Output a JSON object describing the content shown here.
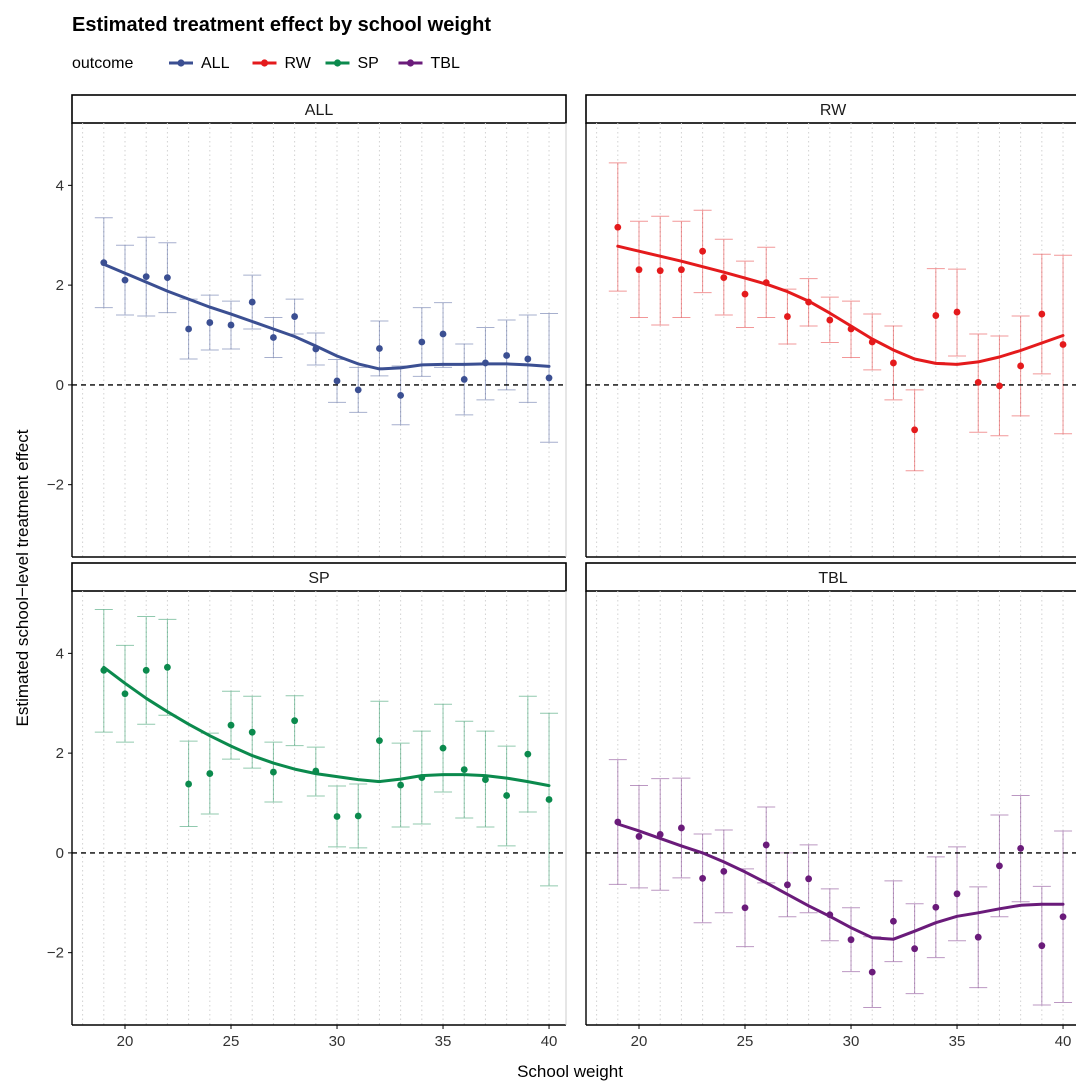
{
  "chart_data": {
    "type": "scatter",
    "title": "Estimated treatment effect by school weight",
    "xlabel": "School weight",
    "ylabel": "Estimated school−level treatment effect",
    "legend": {
      "title": "outcome",
      "placement": "top-left"
    },
    "xlim": [
      17.5,
      40.8
    ],
    "ylim": [
      -3.45,
      5.25
    ],
    "xticks": [
      20,
      25,
      30,
      35,
      40
    ],
    "xtick_labels": [
      "20",
      "25",
      "30",
      "35",
      "40"
    ],
    "yticks": [
      -2,
      0,
      2,
      4
    ],
    "ytick_labels": [
      "−2",
      "0",
      "2",
      "4"
    ],
    "reference_line": 0,
    "x": [
      19,
      20,
      21,
      22,
      23,
      24,
      25,
      26,
      27,
      28,
      29,
      30,
      31,
      32,
      33,
      34,
      35,
      36,
      37,
      38,
      39,
      40
    ],
    "panels": [
      {
        "name": "ALL",
        "color": "#3B4F92",
        "points": [
          2.45,
          2.1,
          2.17,
          2.15,
          1.12,
          1.25,
          1.2,
          1.66,
          0.95,
          1.37,
          0.72,
          0.08,
          -0.1,
          0.73,
          -0.21,
          0.86,
          1.02,
          0.11,
          0.44,
          0.59,
          0.52,
          0.14
        ],
        "lower": [
          1.55,
          1.4,
          1.38,
          1.45,
          0.52,
          0.7,
          0.72,
          1.12,
          0.55,
          1.02,
          0.4,
          -0.35,
          -0.55,
          0.18,
          -0.8,
          0.17,
          0.35,
          -0.6,
          -0.3,
          -0.1,
          -0.35,
          -1.15
        ],
        "upper": [
          3.35,
          2.8,
          2.96,
          2.85,
          1.72,
          1.8,
          1.68,
          2.2,
          1.35,
          1.72,
          1.04,
          0.51,
          0.35,
          1.28,
          0.38,
          1.55,
          1.65,
          0.82,
          1.15,
          1.3,
          1.4,
          1.43
        ],
        "smooth": [
          2.42,
          2.24,
          2.06,
          1.88,
          1.72,
          1.56,
          1.42,
          1.27,
          1.12,
          0.97,
          0.78,
          0.58,
          0.42,
          0.32,
          0.34,
          0.4,
          0.41,
          0.41,
          0.42,
          0.42,
          0.4,
          0.37
        ]
      },
      {
        "name": "RW",
        "color": "#E41A1C",
        "points": [
          3.16,
          2.31,
          2.29,
          2.31,
          2.68,
          2.15,
          1.82,
          2.05,
          1.37,
          1.66,
          1.3,
          1.12,
          0.86,
          0.44,
          -0.9,
          1.39,
          1.46,
          0.05,
          -0.02,
          0.38,
          1.42,
          0.81
        ],
        "lower": [
          1.88,
          1.35,
          1.2,
          1.35,
          1.85,
          1.4,
          1.15,
          1.35,
          0.82,
          1.18,
          0.85,
          0.55,
          0.3,
          -0.3,
          -1.72,
          0.45,
          0.58,
          -0.95,
          -1.02,
          -0.62,
          0.22,
          -0.98
        ],
        "upper": [
          4.45,
          3.28,
          3.38,
          3.28,
          3.5,
          2.92,
          2.48,
          2.76,
          1.92,
          2.13,
          1.76,
          1.68,
          1.42,
          1.18,
          -0.1,
          2.33,
          2.32,
          1.02,
          0.98,
          1.38,
          2.62,
          2.6
        ],
        "smooth": [
          2.78,
          2.68,
          2.58,
          2.48,
          2.37,
          2.26,
          2.14,
          2.02,
          1.87,
          1.68,
          1.44,
          1.18,
          0.92,
          0.7,
          0.52,
          0.43,
          0.41,
          0.46,
          0.56,
          0.69,
          0.84,
          0.99
        ]
      },
      {
        "name": "SP",
        "color": "#0B8A4D",
        "points": [
          3.66,
          3.19,
          3.66,
          3.72,
          1.38,
          1.59,
          2.56,
          2.42,
          1.62,
          2.65,
          1.64,
          0.73,
          0.74,
          2.25,
          1.36,
          1.51,
          2.1,
          1.67,
          1.47,
          1.15,
          1.98,
          1.07
        ],
        "lower": [
          2.42,
          2.22,
          2.58,
          2.76,
          0.53,
          0.78,
          1.88,
          1.7,
          1.02,
          2.15,
          1.14,
          0.12,
          0.1,
          1.45,
          0.52,
          0.58,
          1.22,
          0.7,
          0.52,
          0.14,
          0.82,
          -0.66
        ],
        "upper": [
          4.88,
          4.16,
          4.74,
          4.68,
          2.24,
          2.4,
          3.24,
          3.14,
          2.22,
          3.15,
          2.12,
          1.34,
          1.38,
          3.04,
          2.2,
          2.44,
          2.98,
          2.64,
          2.44,
          2.14,
          3.14,
          2.8
        ],
        "smooth": [
          3.72,
          3.4,
          3.1,
          2.83,
          2.58,
          2.35,
          2.14,
          1.95,
          1.8,
          1.68,
          1.59,
          1.53,
          1.47,
          1.43,
          1.48,
          1.55,
          1.57,
          1.57,
          1.55,
          1.5,
          1.43,
          1.35
        ]
      },
      {
        "name": "TBL",
        "color": "#6A1B7A",
        "points": [
          0.62,
          0.33,
          0.37,
          0.5,
          -0.51,
          -0.37,
          -1.1,
          0.16,
          -0.64,
          -0.52,
          -1.24,
          -1.74,
          -2.39,
          -1.37,
          -1.92,
          -1.09,
          -0.82,
          -1.69,
          -0.26,
          0.09,
          -1.86,
          -1.28
        ],
        "lower": [
          -0.63,
          -0.7,
          -0.75,
          -0.5,
          -1.4,
          -1.2,
          -1.88,
          -0.6,
          -1.28,
          -1.2,
          -1.76,
          -2.38,
          -3.1,
          -2.18,
          -2.82,
          -2.1,
          -1.76,
          -2.7,
          -1.28,
          -0.98,
          -3.05,
          -3.0
        ],
        "upper": [
          1.87,
          1.35,
          1.49,
          1.5,
          0.38,
          0.46,
          -0.32,
          0.92,
          0.0,
          0.16,
          -0.72,
          -1.1,
          -1.68,
          -0.56,
          -1.02,
          -0.08,
          0.12,
          -0.68,
          0.76,
          1.15,
          -0.67,
          0.44
        ],
        "smooth": [
          0.58,
          0.44,
          0.29,
          0.14,
          0.0,
          -0.18,
          -0.38,
          -0.6,
          -0.83,
          -1.06,
          -1.27,
          -1.5,
          -1.7,
          -1.73,
          -1.57,
          -1.4,
          -1.27,
          -1.2,
          -1.12,
          -1.05,
          -1.03,
          -1.03
        ]
      }
    ]
  }
}
